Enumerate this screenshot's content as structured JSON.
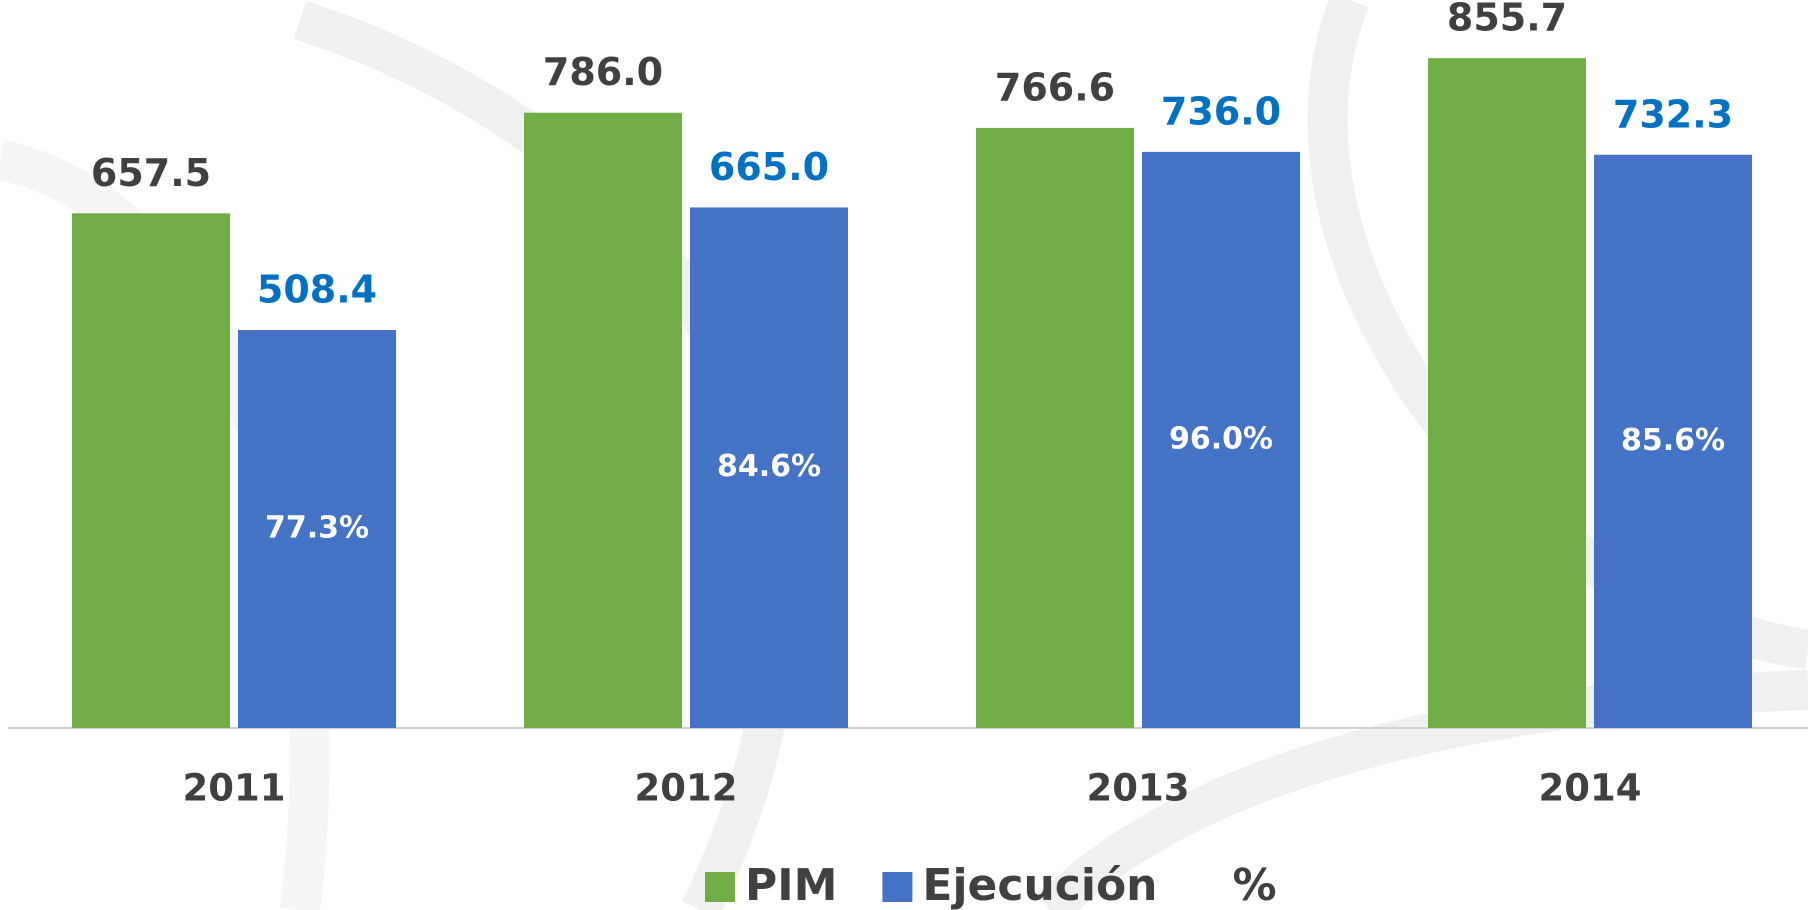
{
  "chart_data": {
    "type": "bar",
    "categories": [
      "2011",
      "2012",
      "2013",
      "2014"
    ],
    "series": [
      {
        "name": "PIM",
        "color": "#70ad47",
        "values": [
          657.5,
          786.0,
          766.6,
          855.7
        ],
        "value_labels": [
          "657.5",
          "786.0",
          "766.6",
          "855.7"
        ],
        "label_color": "#404040"
      },
      {
        "name": "Ejecución",
        "color": "#4472c4",
        "values": [
          508.4,
          665.0,
          736.0,
          732.3
        ],
        "value_labels": [
          "508.4",
          "665.0",
          "736.0",
          "732.3"
        ],
        "label_color": "#0070c0"
      },
      {
        "name": "%",
        "values": [
          77.3,
          84.6,
          96.0,
          85.6
        ],
        "value_labels": [
          "77.3%",
          "84.6%",
          "96.0%",
          "85.6%"
        ],
        "label_color": "#ffffff"
      }
    ],
    "ylim": [
      0,
      930
    ]
  }
}
